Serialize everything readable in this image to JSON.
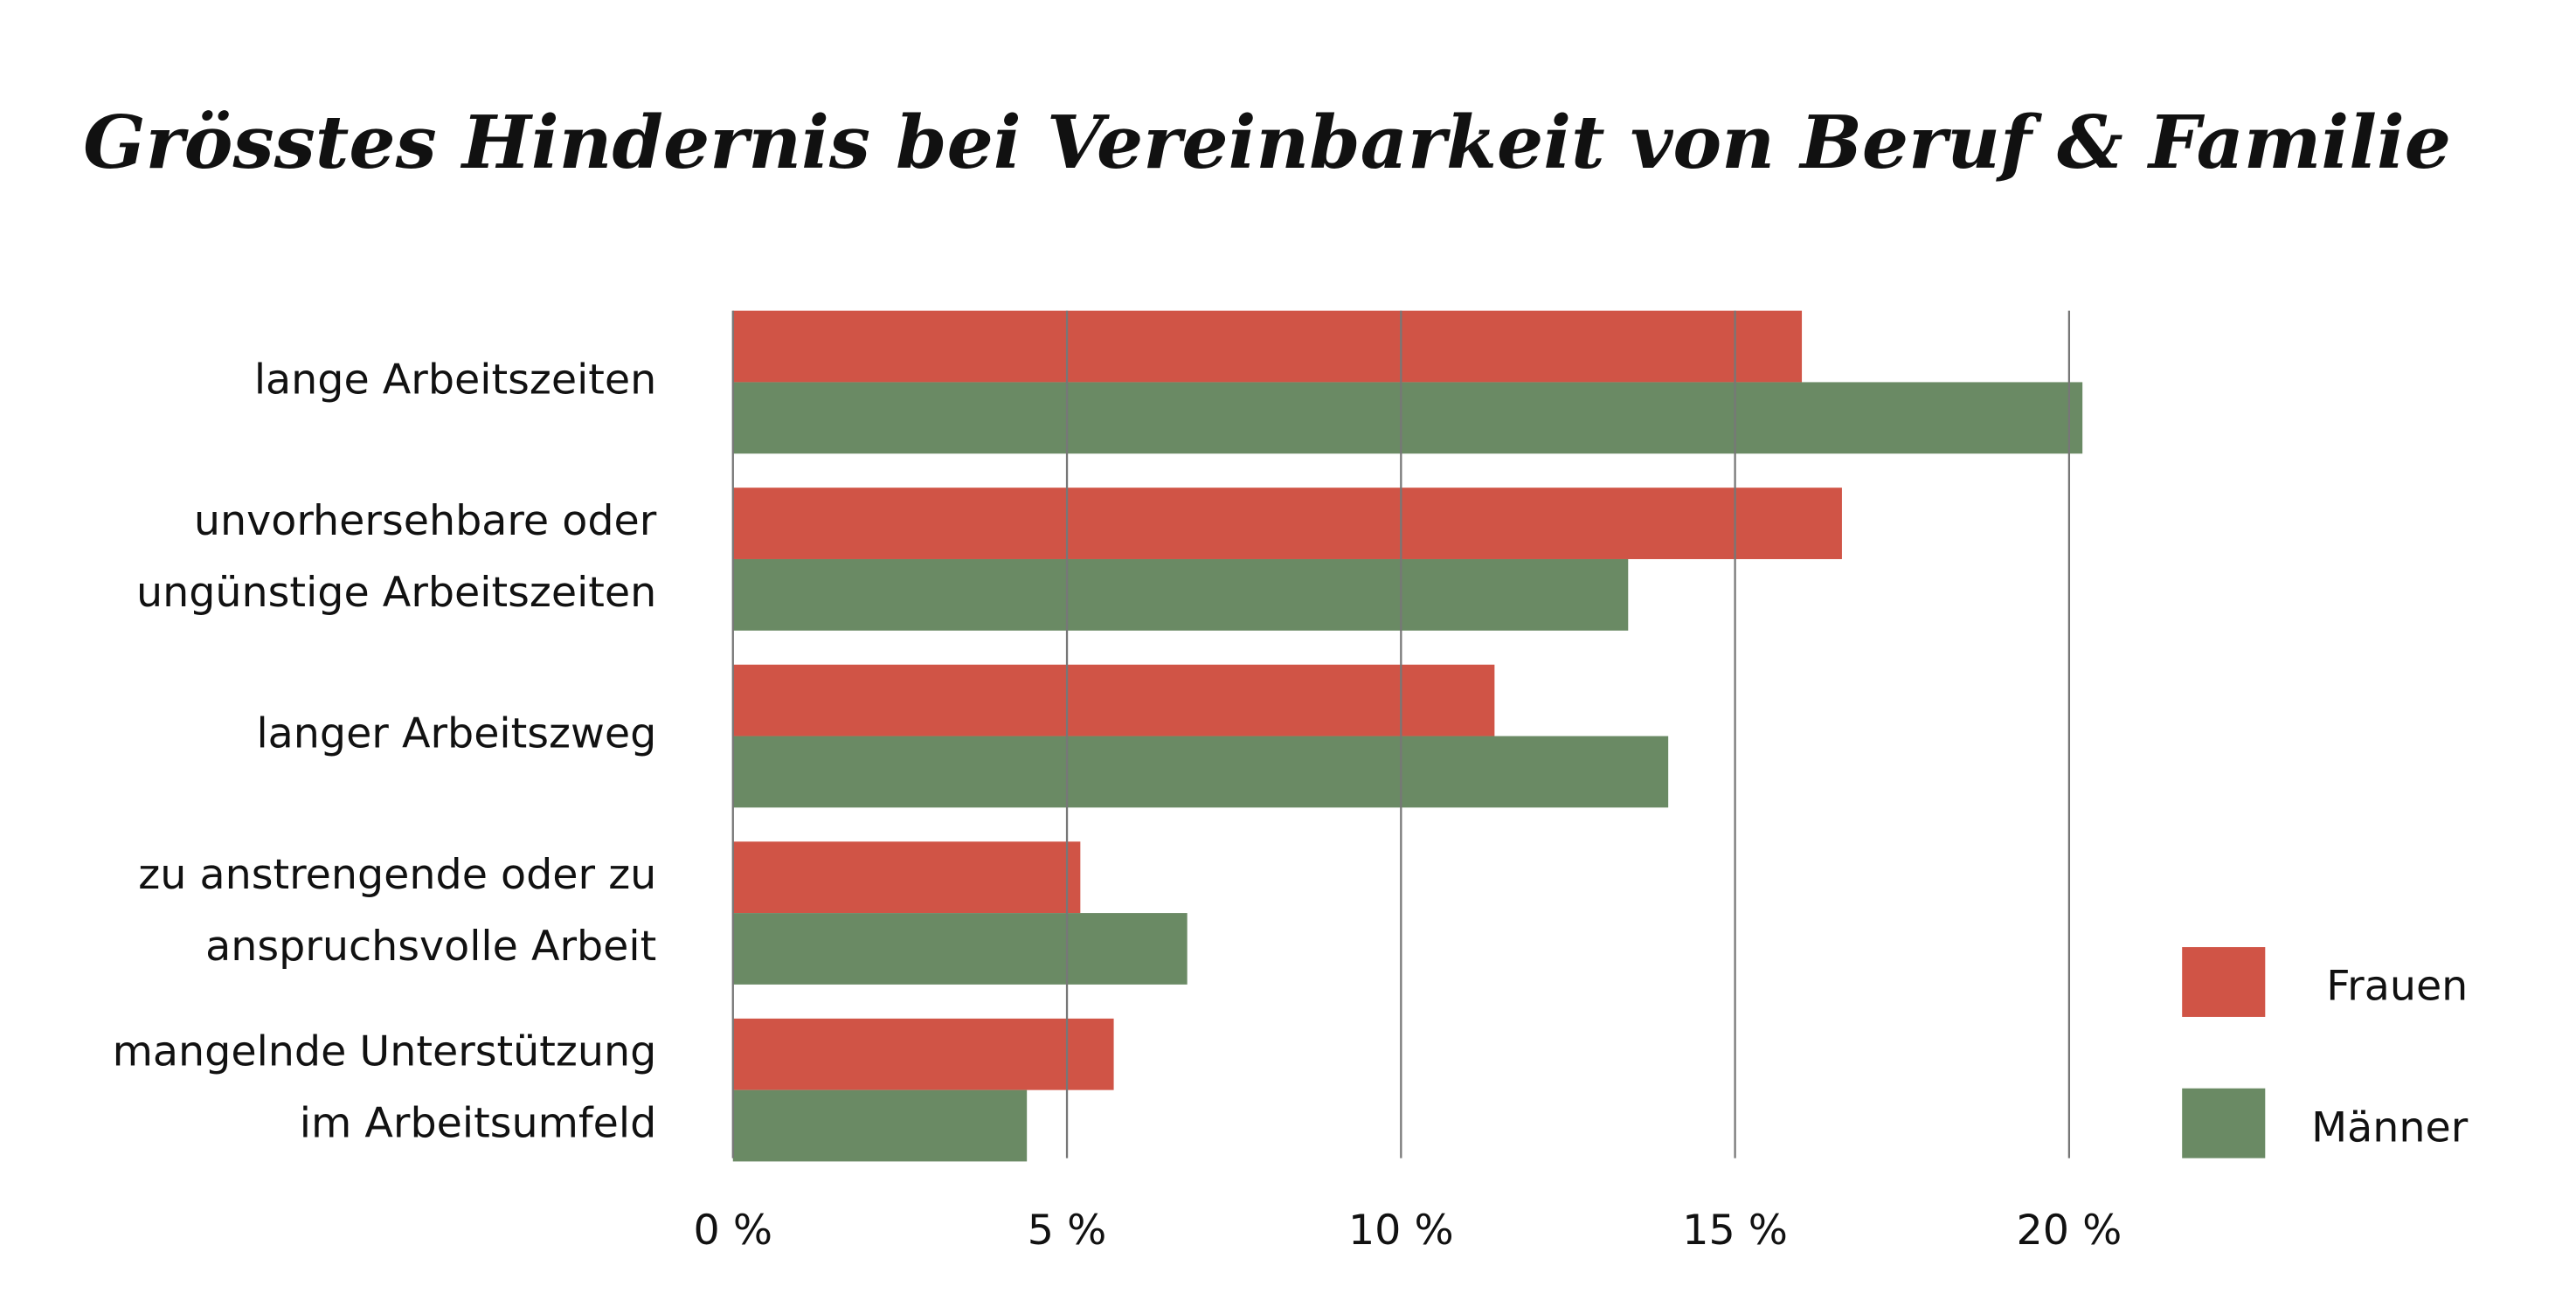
{
  "chart_data": {
    "type": "bar",
    "orientation": "horizontal",
    "title": "Grösstes Hindernis bei Vereinbarkeit von Beruf & Familie",
    "categories": [
      [
        "lange Arbeitszeiten"
      ],
      [
        "unvorhersehbare oder",
        "ungünstige Arbeitszeiten"
      ],
      [
        "langer Arbeitszweg"
      ],
      [
        "zu anstrengende oder zu",
        "anspruchsvolle Arbeit"
      ],
      [
        "mangelnde Unterstützung",
        "im Arbeitsumfeld"
      ]
    ],
    "series": [
      {
        "name": "Frauen",
        "color": "#d05446",
        "values": [
          16.0,
          16.6,
          11.4,
          5.2,
          5.7
        ]
      },
      {
        "name": "Männer",
        "color": "#6a8a64",
        "values": [
          20.2,
          13.4,
          14.0,
          6.8,
          4.4
        ]
      }
    ],
    "xlim": [
      0,
      20
    ],
    "xticks": [
      {
        "value": 0,
        "label": "0 %"
      },
      {
        "value": 5,
        "label": "5 %"
      },
      {
        "value": 10,
        "label": "10 %"
      },
      {
        "value": 15,
        "label": "15 %"
      },
      {
        "value": 20,
        "label": "20 %"
      }
    ],
    "grid": true,
    "legend": "bottom-right"
  }
}
